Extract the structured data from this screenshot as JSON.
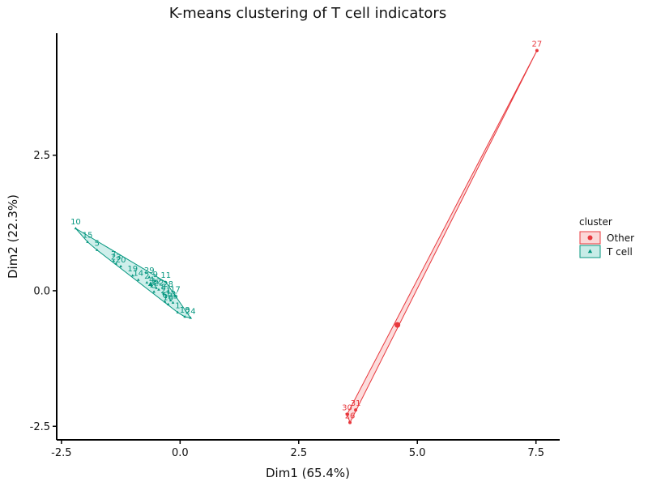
{
  "chart_data": {
    "type": "scatter",
    "title": "K-means clustering of T cell indicators",
    "xlabel": "Dim1 (65.4%)",
    "ylabel": "Dim2 (22.3%)",
    "xlim": [
      -2.6,
      8.0
    ],
    "ylim": [
      -2.75,
      4.75
    ],
    "xticks": [
      -2.5,
      0.0,
      2.5,
      5.0,
      7.5
    ],
    "xtick_labels": [
      "-2.5",
      "0.0",
      "2.5",
      "5.0",
      "7.5"
    ],
    "yticks": [
      -2.5,
      0.0,
      2.5
    ],
    "ytick_labels": [
      "-2.5",
      "0.0",
      "2.5"
    ],
    "grid": false,
    "legend": {
      "title": "cluster",
      "placement": "right",
      "entries": [
        {
          "label": "Other",
          "color": "#e8383d",
          "fill": "#fbd7d7",
          "shape": "circle"
        },
        {
          "label": "T cell",
          "color": "#05967f",
          "fill": "#c7ece7",
          "shape": "triangle"
        }
      ]
    },
    "series": [
      {
        "name": "Other",
        "color": "#e8383d",
        "fill": "#fbd7d7",
        "shape": "circle",
        "centroid": [
          4.58,
          -0.63
        ],
        "points": [
          {
            "label": "27",
            "x": 7.52,
            "y": 4.43
          },
          {
            "label": "30",
            "x": 3.52,
            "y": -2.28
          },
          {
            "label": "31",
            "x": 3.7,
            "y": -2.2
          },
          {
            "label": "26",
            "x": 3.58,
            "y": -2.43
          }
        ]
      },
      {
        "name": "T cell",
        "color": "#05967f",
        "fill": "#c7ece7",
        "shape": "triangle",
        "centroid": [
          -0.62,
          0.12
        ],
        "points": [
          {
            "label": "10",
            "x": -2.2,
            "y": 1.15
          },
          {
            "label": "15",
            "x": -1.95,
            "y": 0.9
          },
          {
            "label": "5",
            "x": -1.75,
            "y": 0.75
          },
          {
            "label": "7",
            "x": -1.4,
            "y": 0.55
          },
          {
            "label": "23",
            "x": -1.35,
            "y": 0.5
          },
          {
            "label": "20",
            "x": -1.25,
            "y": 0.45
          },
          {
            "label": "19",
            "x": -1.0,
            "y": 0.28
          },
          {
            "label": "14",
            "x": -0.88,
            "y": 0.2
          },
          {
            "label": "29",
            "x": -0.65,
            "y": 0.25
          },
          {
            "label": "2",
            "x": -0.7,
            "y": 0.15
          },
          {
            "label": "9",
            "x": -0.52,
            "y": 0.18
          },
          {
            "label": "11",
            "x": -0.3,
            "y": 0.16
          },
          {
            "label": "4",
            "x": -0.6,
            "y": 0.08
          },
          {
            "label": "12",
            "x": -0.5,
            "y": 0.05
          },
          {
            "label": "22",
            "x": -0.45,
            "y": 0.02
          },
          {
            "label": "3",
            "x": -0.55,
            "y": -0.02
          },
          {
            "label": "28",
            "x": -0.25,
            "y": 0.0
          },
          {
            "label": "8",
            "x": -0.35,
            "y": -0.05
          },
          {
            "label": "17",
            "x": -0.1,
            "y": -0.1
          },
          {
            "label": "21",
            "x": -0.3,
            "y": -0.12
          },
          {
            "label": "13",
            "x": -0.2,
            "y": -0.18
          },
          {
            "label": "6",
            "x": -0.32,
            "y": -0.2
          },
          {
            "label": "25",
            "x": -0.15,
            "y": -0.22
          },
          {
            "label": "16",
            "x": -0.25,
            "y": -0.25
          },
          {
            "label": "1",
            "x": -0.05,
            "y": -0.4
          },
          {
            "label": "18",
            "x": 0.1,
            "y": -0.48
          },
          {
            "label": "24",
            "x": 0.22,
            "y": -0.5
          }
        ]
      }
    ]
  }
}
